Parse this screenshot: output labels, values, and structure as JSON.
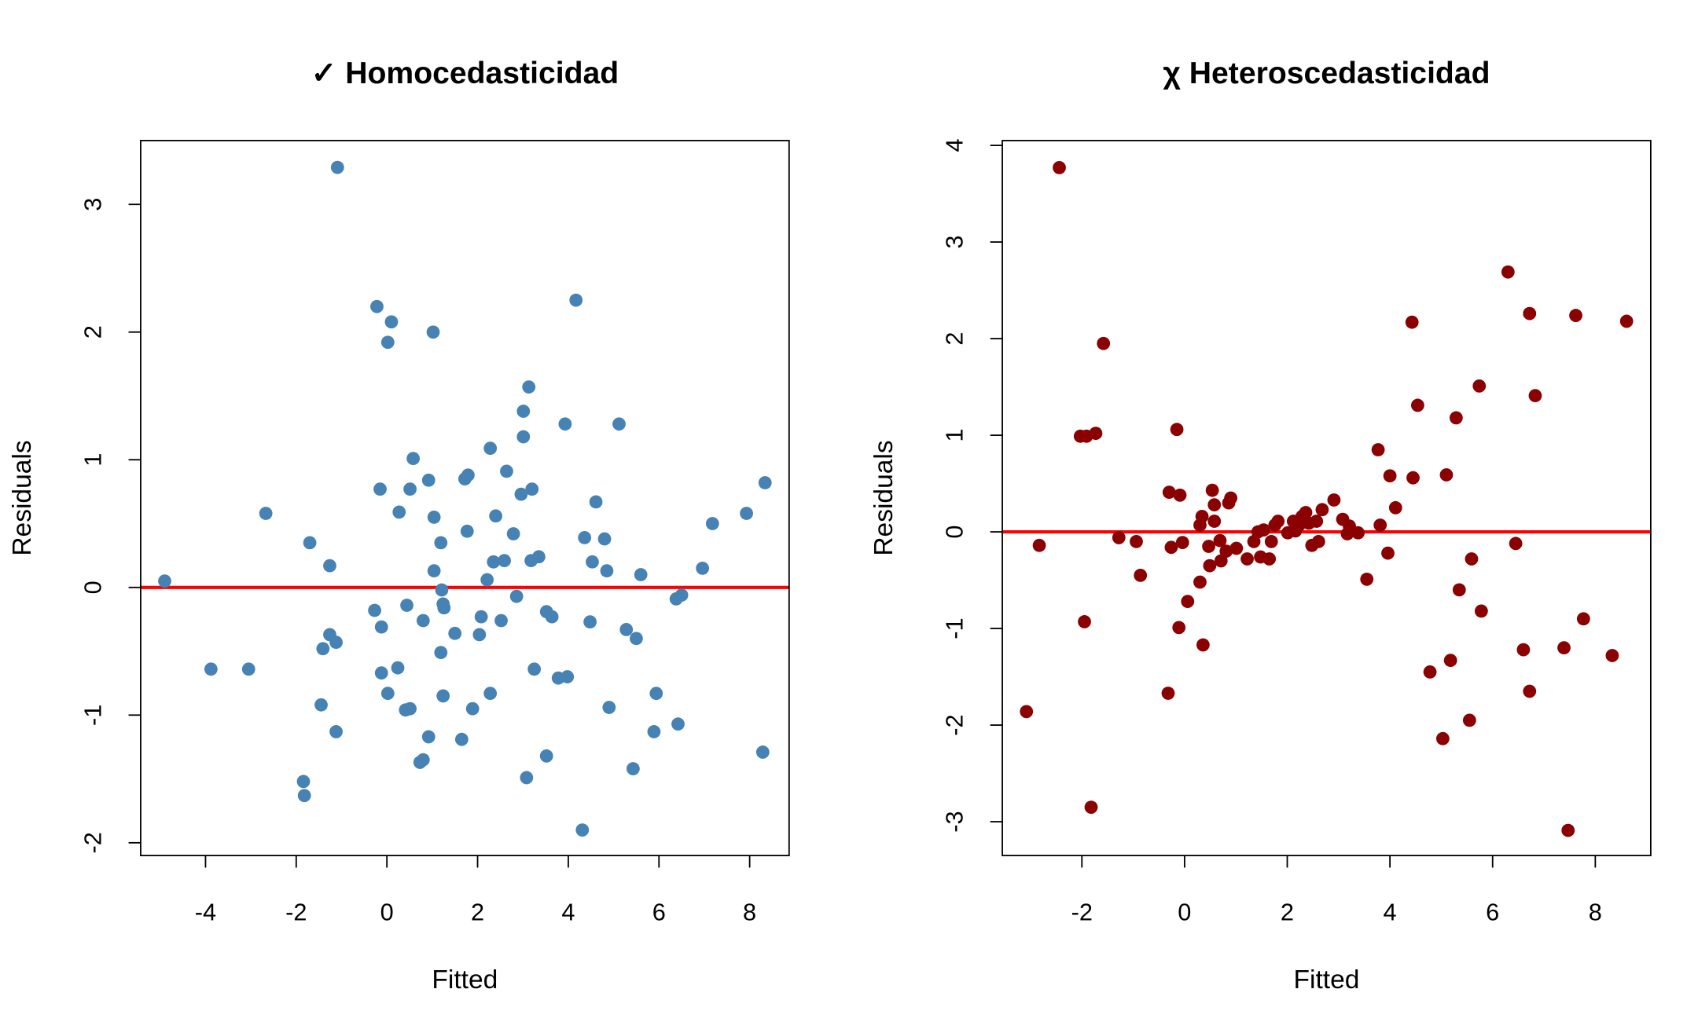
{
  "chart_data": [
    {
      "type": "scatter",
      "title": "✓ Homocedasticidad",
      "xlabel": "Fitted",
      "ylabel": "Residuals",
      "color": "#4682b4",
      "xlim": [
        -5.43,
        8.87
      ],
      "ylim": [
        -2.1,
        3.5
      ],
      "xticks": [
        -4,
        -2,
        0,
        2,
        4,
        6,
        8
      ],
      "yticks": [
        -2,
        -1,
        0,
        1,
        2,
        3
      ],
      "hline": {
        "value": 0,
        "color": "#ff0000"
      },
      "x": [
        -4.9,
        -3.88,
        -3.05,
        -2.67,
        -1.84,
        -1.82,
        -1.7,
        -1.45,
        -1.41,
        -1.26,
        -1.26,
        -1.12,
        -1.12,
        -1.09,
        -0.27,
        -0.22,
        -0.15,
        -0.12,
        -0.12,
        0.02,
        0.02,
        0.1,
        0.24,
        0.27,
        0.44,
        0.41,
        0.51,
        0.51,
        0.58,
        0.73,
        0.8,
        0.8,
        0.92,
        0.92,
        1.02,
        1.04,
        1.04,
        1.19,
        1.19,
        1.21,
        1.24,
        1.26,
        1.24,
        1.5,
        1.65,
        1.72,
        1.79,
        1.77,
        1.89,
        2.04,
        2.08,
        2.21,
        2.28,
        2.28,
        2.35,
        2.4,
        2.52,
        2.59,
        2.64,
        2.79,
        2.86,
        2.96,
        3.01,
        3.01,
        3.08,
        3.13,
        3.18,
        3.2,
        3.25,
        3.35,
        3.52,
        3.52,
        3.64,
        3.78,
        3.93,
        3.98,
        4.17,
        4.31,
        4.36,
        4.48,
        4.53,
        4.61,
        4.8,
        4.85,
        4.9,
        5.12,
        5.28,
        5.43,
        5.5,
        5.6,
        5.89,
        5.94,
        6.38,
        6.42,
        6.5,
        6.96,
        7.18,
        7.93,
        8.29,
        8.34
      ],
      "values": [
        0.05,
        -0.64,
        -0.64,
        0.58,
        -1.52,
        -1.63,
        0.35,
        -0.92,
        -0.48,
        0.17,
        -0.37,
        -0.43,
        -1.13,
        3.29,
        -0.18,
        2.2,
        0.77,
        -0.31,
        -0.67,
        -0.83,
        1.92,
        2.08,
        -0.63,
        0.59,
        -0.14,
        -0.96,
        -0.95,
        0.77,
        1.01,
        -1.37,
        -1.35,
        -0.26,
        -1.17,
        0.84,
        2.0,
        0.13,
        0.55,
        -0.51,
        0.35,
        -0.02,
        -0.13,
        -0.16,
        -0.85,
        -0.36,
        -1.19,
        0.85,
        0.88,
        0.44,
        -0.95,
        -0.37,
        -0.23,
        0.06,
        1.09,
        -0.83,
        0.2,
        0.56,
        -0.26,
        0.21,
        0.91,
        0.42,
        -0.07,
        0.73,
        1.18,
        1.38,
        -1.49,
        1.57,
        0.21,
        0.77,
        -0.64,
        0.24,
        -1.32,
        -0.19,
        -0.23,
        -0.71,
        1.28,
        -0.7,
        2.25,
        -1.9,
        0.39,
        -0.27,
        0.2,
        0.67,
        0.38,
        0.13,
        -0.94,
        1.28,
        -0.33,
        -1.42,
        -0.4,
        0.1,
        -1.13,
        -0.83,
        -0.09,
        -1.07,
        -0.06,
        0.15,
        0.5,
        0.58,
        -1.29,
        0.82
      ]
    },
    {
      "type": "scatter",
      "title": "χ Heteroscedasticidad",
      "xlabel": "Fitted",
      "ylabel": "Residuals",
      "color": "#8b0000",
      "xlim": [
        -3.55,
        9.08
      ],
      "ylim": [
        -3.35,
        4.05
      ],
      "xticks": [
        -2,
        0,
        2,
        4,
        6,
        8
      ],
      "yticks": [
        -3,
        -2,
        -1,
        0,
        1,
        2,
        3,
        4
      ],
      "hline": {
        "value": 0,
        "color": "#ff0000"
      },
      "x": [
        -3.08,
        -2.83,
        -2.44,
        -2.03,
        -1.91,
        -1.95,
        -1.82,
        -1.73,
        -1.58,
        -1.28,
        -0.94,
        -0.86,
        -0.32,
        -0.3,
        -0.26,
        -0.15,
        -0.11,
        -0.09,
        -0.04,
        0.06,
        0.3,
        0.3,
        0.34,
        0.36,
        0.47,
        0.49,
        0.54,
        0.58,
        0.58,
        0.69,
        0.71,
        0.81,
        0.86,
        0.9,
        1.01,
        1.22,
        1.35,
        1.43,
        1.48,
        1.54,
        1.65,
        1.69,
        1.76,
        1.82,
        2.01,
        2.12,
        2.16,
        2.23,
        2.29,
        2.36,
        2.42,
        2.48,
        2.57,
        2.61,
        2.68,
        2.91,
        3.08,
        3.17,
        3.21,
        3.38,
        3.55,
        3.77,
        3.81,
        3.96,
        4.0,
        4.11,
        4.43,
        4.45,
        4.54,
        4.78,
        5.03,
        5.1,
        5.18,
        5.29,
        5.35,
        5.55,
        5.59,
        5.74,
        5.78,
        6.3,
        6.45,
        6.6,
        6.72,
        6.72,
        6.83,
        7.39,
        7.47,
        7.62,
        7.77,
        8.33,
        8.61
      ],
      "values": [
        -1.86,
        -0.14,
        3.77,
        0.99,
        0.99,
        -0.93,
        -2.85,
        1.02,
        1.95,
        -0.06,
        -0.1,
        -0.45,
        -1.67,
        0.41,
        -0.16,
        1.06,
        -0.99,
        0.38,
        -0.11,
        -0.72,
        -0.52,
        0.07,
        0.16,
        -1.17,
        -0.15,
        -0.35,
        0.43,
        0.11,
        0.28,
        -0.09,
        -0.3,
        -0.2,
        0.3,
        0.35,
        -0.17,
        -0.28,
        -0.1,
        0.0,
        -0.26,
        0.02,
        -0.28,
        -0.1,
        0.07,
        0.11,
        -0.01,
        0.11,
        0.01,
        0.07,
        0.16,
        0.2,
        0.09,
        -0.14,
        0.11,
        -0.1,
        0.23,
        0.33,
        0.13,
        -0.02,
        0.06,
        -0.01,
        -0.49,
        0.85,
        0.07,
        -0.22,
        0.58,
        0.25,
        2.17,
        0.56,
        1.31,
        -1.45,
        -2.14,
        0.59,
        -1.33,
        1.18,
        -0.6,
        -1.95,
        -0.28,
        1.51,
        -0.82,
        2.69,
        -0.12,
        -1.22,
        2.26,
        -1.65,
        1.41,
        -1.2,
        -3.09,
        2.24,
        -0.9,
        -1.28,
        2.18
      ]
    }
  ]
}
